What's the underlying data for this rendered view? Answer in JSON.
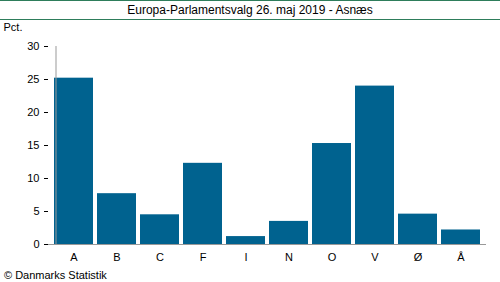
{
  "chart_data": {
    "type": "bar",
    "title": "Europa-Parlamentsvalg 26. maj 2019 - Asnæs",
    "caption": "© Danmarks Statistik",
    "y_label": "Pct.",
    "categories": [
      "A",
      "B",
      "C",
      "F",
      "I",
      "N",
      "O",
      "V",
      "Ø",
      "Å"
    ],
    "values": [
      25.2,
      7.7,
      4.5,
      12.3,
      1.2,
      3.5,
      15.3,
      24.0,
      4.6,
      2.2
    ],
    "color": "#00628f",
    "ylim": [
      0,
      30
    ],
    "yticks": [
      0,
      5,
      10,
      15,
      20,
      25,
      30
    ],
    "grid": false
  }
}
